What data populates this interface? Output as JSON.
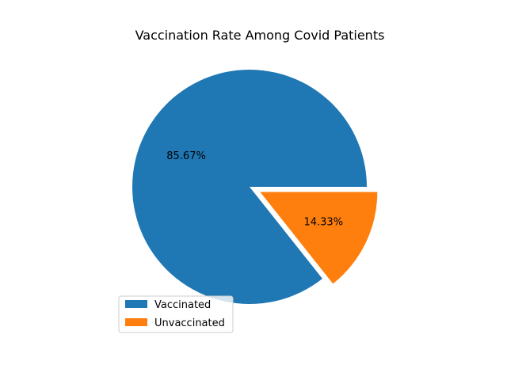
{
  "chart_data": {
    "type": "pie",
    "title": "Vaccination Rate Among Covid Patients",
    "start_angle_deg": 0,
    "direction": "counterclockwise",
    "slices": [
      {
        "label": "Vaccinated",
        "value": 85.67,
        "pct_label": "85.67%",
        "color": "#1f77b4",
        "explode": 0
      },
      {
        "label": "Unvaccinated",
        "value": 14.33,
        "pct_label": "14.33%",
        "color": "#ff7f0e",
        "explode": 0.1
      }
    ],
    "legend": {
      "placement": "lower-left",
      "entries": [
        "Vaccinated",
        "Unvaccinated"
      ]
    }
  }
}
